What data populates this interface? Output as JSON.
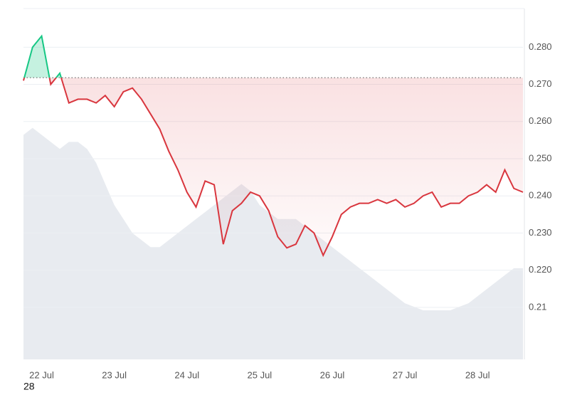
{
  "chart_data": {
    "type": "line",
    "categories": [
      null,
      null,
      "22 Jul",
      null,
      null,
      null,
      null,
      null,
      null,
      null,
      "23 Jul",
      null,
      null,
      null,
      null,
      null,
      null,
      null,
      "24 Jul",
      null,
      null,
      null,
      null,
      null,
      null,
      null,
      "25 Jul",
      null,
      null,
      null,
      null,
      null,
      null,
      null,
      "26 Jul",
      null,
      null,
      null,
      null,
      null,
      null,
      null,
      "27 Jul",
      null,
      null,
      null,
      null,
      null,
      null,
      null,
      "28 Jul",
      null,
      null,
      null,
      null,
      null
    ],
    "series": [
      {
        "values": [
          0.271,
          0.28,
          0.283,
          0.27,
          0.273,
          0.265,
          0.266,
          0.266,
          0.265,
          0.267,
          0.264,
          0.268,
          0.269,
          0.266,
          0.262,
          0.258,
          0.252,
          0.247,
          0.241,
          0.237,
          0.244,
          0.243,
          0.227,
          0.236,
          0.238,
          0.241,
          0.24,
          0.236,
          0.229,
          0.226,
          0.227,
          0.232,
          0.23,
          0.224,
          0.229,
          0.235,
          0.237,
          0.238,
          0.238,
          0.239,
          0.238,
          0.239,
          0.237,
          0.238,
          0.24,
          0.241,
          0.237,
          0.238,
          0.238,
          0.24,
          0.241,
          0.243,
          0.241,
          0.247,
          0.242,
          0.241
        ],
        "color": "#d9363e",
        "above_color": "#16c784"
      },
      {
        "values": [
          64,
          66,
          64,
          62,
          60,
          62,
          62,
          60,
          56,
          50,
          44,
          40,
          36,
          34,
          32,
          32,
          34,
          36,
          38,
          40,
          42,
          44,
          46,
          48,
          50,
          48,
          44,
          42,
          40,
          40,
          40,
          38,
          36,
          34,
          32,
          30,
          28,
          26,
          24,
          22,
          20,
          18,
          16,
          15,
          14,
          14,
          14,
          14,
          15,
          16,
          18,
          20,
          22,
          24,
          26,
          26
        ],
        "color": "#e8ebf0",
        "axis": "y2"
      }
    ],
    "baseline": 0.2718,
    "ylim": [
      0.196,
      0.2904
    ],
    "yticks": [
      0.21,
      {
        "value": 0.22,
        "label": "0.220"
      },
      {
        "value": 0.23,
        "label": "0.230"
      },
      {
        "value": 0.24,
        "label": "0.240"
      },
      {
        "value": 0.25,
        "label": "0.250"
      },
      {
        "value": 0.26,
        "label": "0.260"
      },
      {
        "value": 0.27,
        "label": "0.270"
      },
      {
        "value": 0.28,
        "label": "0.280"
      }
    ],
    "y2lim": [
      0,
      100
    ],
    "grid": true
  },
  "footer_text": "28"
}
